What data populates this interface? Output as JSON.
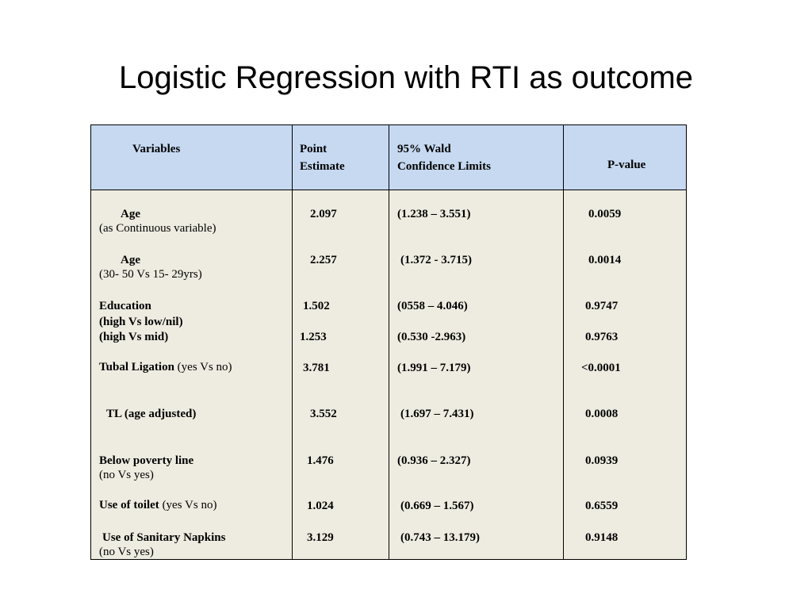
{
  "title": "Logistic Regression with RTI as outcome",
  "headers": {
    "variables": "Variables",
    "point_estimate_line1": "Point",
    "point_estimate_line2": "Estimate",
    "ci_line1": "95% Wald",
    "ci_line2": "Confidence Limits",
    "p_value": "P-value"
  },
  "rows": [
    {
      "label": "Age",
      "sublabel": "(as Continuous variable)",
      "estimate": "2.097",
      "ci": "(1.238 – 3.551)",
      "p": "0.0059"
    },
    {
      "label": "Age",
      "sublabel": "(30- 50 Vs 15- 29yrs)",
      "estimate": "2.257",
      "ci": "(1.372 - 3.715)",
      "p": "0.0014"
    },
    {
      "label": "Education",
      "sublabel": "(high Vs low/nil)",
      "estimate": "1.502",
      "ci": "(0558 – 4.046)",
      "p": "0.9747"
    },
    {
      "label": "(high Vs mid)",
      "estimate": "1.253",
      "ci": "(0.530 -2.963)",
      "p": "0.9763"
    },
    {
      "label": "Tubal  Ligation",
      "label_suffix": " (yes Vs no)",
      "estimate": "3.781",
      "ci": "(1.991 – 7.179)",
      "p": "<0.0001"
    },
    {
      "label": "TL (age adjusted)",
      "estimate": "3.552",
      "ci": "(1.697 – 7.431)",
      "p": "0.0008"
    },
    {
      "label": "Below poverty line",
      "sublabel": "(no Vs yes)",
      "estimate": "1.476",
      "ci": "(0.936 – 2.327)",
      "p": "0.0939"
    },
    {
      "label": "Use of toilet",
      "label_suffix": " (yes Vs no)",
      "estimate": "1.024",
      "ci": "(0.669 – 1.567)",
      "p": "0.6559"
    },
    {
      "label": "Use of Sanitary Napkins",
      "sublabel": "(no Vs yes)",
      "estimate": "3.129",
      "ci": "(0.743 – 13.179)",
      "p": "0.9148"
    }
  ],
  "colors": {
    "header_background": "#c6d9f1",
    "body_background": "#eeece1",
    "border": "#000000"
  }
}
